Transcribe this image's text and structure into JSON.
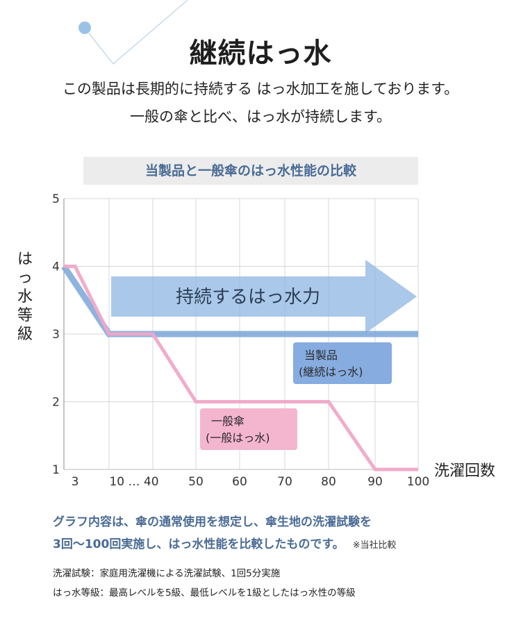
{
  "header": {
    "title": "継続はっ水",
    "subtitle_line1": "この製品は長期的に持続する はっ水加工を施しております。",
    "subtitle_line2": "一般の傘と比べ、はっ水が持続します。"
  },
  "chart_data": {
    "type": "line",
    "title": "当製品と一般傘のはっ水性能の比較",
    "xlabel": "洗濯回数",
    "ylabel": "はっ水等級",
    "x_tick_labels": [
      "3",
      "10 … 40",
      "50",
      "60",
      "70",
      "80",
      "90",
      "100"
    ],
    "y_ticks": [
      1,
      2,
      3,
      4,
      5
    ],
    "ylim": [
      1,
      5
    ],
    "grid": true,
    "series": [
      {
        "name": "当製品(継続はっ水)",
        "color": "#7aa6d8",
        "points": [
          [
            0,
            4
          ],
          [
            10,
            3
          ],
          [
            40,
            3
          ],
          [
            50,
            3
          ],
          [
            60,
            3
          ],
          [
            70,
            3
          ],
          [
            80,
            3
          ],
          [
            90,
            3
          ],
          [
            100,
            3
          ]
        ]
      },
      {
        "name": "一般傘(一般はっ水)",
        "color": "#f0a8c8",
        "points": [
          [
            0,
            4
          ],
          [
            3,
            4
          ],
          [
            10,
            3
          ],
          [
            40,
            3
          ],
          [
            50,
            2
          ],
          [
            80,
            2
          ],
          [
            90,
            1
          ],
          [
            100,
            1
          ]
        ]
      }
    ],
    "labels": {
      "product_line1": "当製品",
      "product_line2": "(継続はっ水)",
      "general_line1": "一般傘",
      "general_line2": "(一般はっ水)"
    },
    "arrow_text": "持続するはっ水力",
    "colors": {
      "product": "#7aa6d8",
      "product_box": "#86ace0",
      "general": "#f0a8c8",
      "general_box": "#f4b5cf",
      "arrow": "#8db5e2",
      "grid": "#d7d7d7"
    }
  },
  "notes": {
    "line1": "グラフ内容は、傘の通常使用を想定し、傘生地の洗濯試験を",
    "line2": "3回〜100回実施し、はっ水性能を比較したものです。",
    "line2_small": "※当社比較",
    "foot1": "洗濯試験：家庭用洗濯機による洗濯試験、1回5分実施",
    "foot2": "はっ水等級：最高レベルを5級、最低レベルを1級としたはっ水性の等級"
  }
}
